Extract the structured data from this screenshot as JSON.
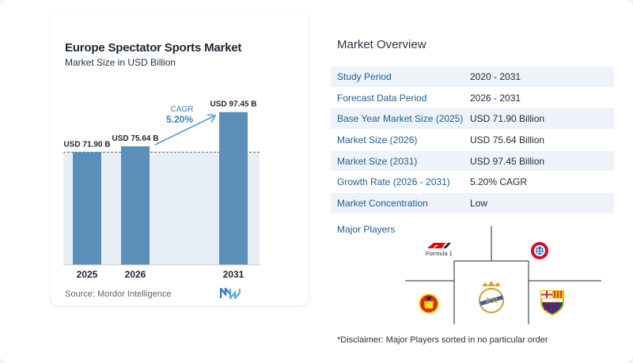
{
  "chart": {
    "title": "Europe Spectator Sports Market",
    "subtitle": "Market Size in USD Billion",
    "source": "Source: Mordor Intelligence",
    "cagr_label": "CAGR",
    "cagr_value": "5.20%",
    "colors": {
      "bar": "#5b8fb9",
      "bar_light": "#7fa9cc",
      "band": "#e7eef6",
      "cagr_text": "#3a7fc1",
      "arrow": "#5f97c6"
    }
  },
  "chart_data": {
    "type": "bar",
    "categories": [
      "2025",
      "2026",
      "2031"
    ],
    "values": [
      71.9,
      75.64,
      97.45
    ],
    "data_labels": [
      "USD 71.90 B",
      "USD 75.64 B",
      "USD 97.45 B"
    ],
    "title": "Europe Spectator Sports Market",
    "subtitle": "Market Size in USD Billion",
    "xlabel": "",
    "ylabel": "",
    "ylim": [
      0,
      100
    ],
    "grid": false,
    "annotation": {
      "label": "CAGR",
      "value": "5.20%",
      "from": "2026",
      "to": "2031"
    }
  },
  "overview": {
    "title": "Market Overview",
    "rows": [
      {
        "label": "Study Period",
        "value": "2020 - 2031"
      },
      {
        "label": "Forecast Data Period",
        "value": "2026 - 2031"
      },
      {
        "label": "Base Year Market Size (2025)",
        "value": "USD 71.90 Billion"
      },
      {
        "label": "Market Size (2026)",
        "value": "USD 75.64 Billion"
      },
      {
        "label": "Market Size (2031)",
        "value": "USD 97.45 Billion"
      },
      {
        "label": "Growth Rate (2026 - 2031)",
        "value": "5.20% CAGR"
      },
      {
        "label": "Market Concentration",
        "value": "Low"
      }
    ]
  },
  "players": {
    "title": "Major Players",
    "logos": [
      {
        "name": "formula1-logo",
        "text": "Formula 1"
      },
      {
        "name": "fc-bayern-logo",
        "text": "FCB"
      },
      {
        "name": "manchester-united-logo",
        "text": "MU"
      },
      {
        "name": "real-madrid-logo",
        "text": "RM"
      },
      {
        "name": "fc-barcelona-logo",
        "text": "FCB"
      }
    ],
    "disclaimer": "*Disclaimer: Major Players sorted in no particular order"
  }
}
